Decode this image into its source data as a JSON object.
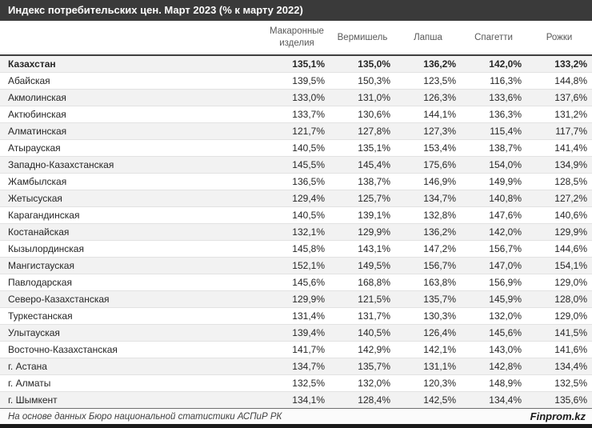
{
  "title": "Индекс потребительских цен. Март 2023 (% к марту 2022)",
  "chart_data": {
    "type": "table",
    "title": "Индекс потребительских цен. Март 2023 (% к марту 2022)",
    "columns": [
      "Макаронные изделия",
      "Вермишель",
      "Лапша",
      "Спагетти",
      "Рожки"
    ],
    "rows": [
      {
        "region": "Казахстан",
        "bold": true,
        "values": [
          "135,1%",
          "135,0%",
          "136,2%",
          "142,0%",
          "133,2%"
        ]
      },
      {
        "region": "Абайская",
        "values": [
          "139,5%",
          "150,3%",
          "123,5%",
          "116,3%",
          "144,8%"
        ]
      },
      {
        "region": "Акмолинская",
        "values": [
          "133,0%",
          "131,0%",
          "126,3%",
          "133,6%",
          "137,6%"
        ]
      },
      {
        "region": "Актюбинская",
        "values": [
          "133,7%",
          "130,6%",
          "144,1%",
          "136,3%",
          "131,2%"
        ]
      },
      {
        "region": "Алматинская",
        "values": [
          "121,7%",
          "127,8%",
          "127,3%",
          "115,4%",
          "117,7%"
        ]
      },
      {
        "region": "Атырауская",
        "values": [
          "140,5%",
          "135,1%",
          "153,4%",
          "138,7%",
          "141,4%"
        ]
      },
      {
        "region": "Западно-Казахстанская",
        "values": [
          "145,5%",
          "145,4%",
          "175,6%",
          "154,0%",
          "134,9%"
        ]
      },
      {
        "region": "Жамбылская",
        "values": [
          "136,5%",
          "138,7%",
          "146,9%",
          "149,9%",
          "128,5%"
        ]
      },
      {
        "region": "Жетысуская",
        "values": [
          "129,4%",
          "125,7%",
          "134,7%",
          "140,8%",
          "127,2%"
        ]
      },
      {
        "region": "Карагандинская",
        "values": [
          "140,5%",
          "139,1%",
          "132,8%",
          "147,6%",
          "140,6%"
        ]
      },
      {
        "region": "Костанайская",
        "values": [
          "132,1%",
          "129,9%",
          "136,2%",
          "142,0%",
          "129,9%"
        ]
      },
      {
        "region": "Кызылординская",
        "values": [
          "145,8%",
          "143,1%",
          "147,2%",
          "156,7%",
          "144,6%"
        ]
      },
      {
        "region": "Мангистауская",
        "values": [
          "152,1%",
          "149,5%",
          "156,7%",
          "147,0%",
          "154,1%"
        ]
      },
      {
        "region": "Павлодарская",
        "values": [
          "145,6%",
          "168,8%",
          "163,8%",
          "156,9%",
          "129,0%"
        ]
      },
      {
        "region": "Северо-Казахстанская",
        "values": [
          "129,9%",
          "121,5%",
          "135,7%",
          "145,9%",
          "128,0%"
        ]
      },
      {
        "region": "Туркестанская",
        "values": [
          "131,4%",
          "131,7%",
          "130,3%",
          "132,0%",
          "129,0%"
        ]
      },
      {
        "region": "Улытауская",
        "values": [
          "139,4%",
          "140,5%",
          "126,4%",
          "145,6%",
          "141,5%"
        ]
      },
      {
        "region": "Восточно-Казахстанская",
        "values": [
          "141,7%",
          "142,9%",
          "142,1%",
          "143,0%",
          "141,6%"
        ]
      },
      {
        "region": "г. Астана",
        "values": [
          "134,7%",
          "135,7%",
          "131,1%",
          "142,8%",
          "134,4%"
        ]
      },
      {
        "region": "г. Алматы",
        "values": [
          "132,5%",
          "132,0%",
          "120,3%",
          "148,9%",
          "132,5%"
        ]
      },
      {
        "region": "г. Шымкент",
        "values": [
          "134,1%",
          "128,4%",
          "142,5%",
          "134,4%",
          "135,6%"
        ]
      }
    ]
  },
  "footer": {
    "source": "На основе данных Бюро национальной статистики АСПиР РК",
    "brand": "Finprom.kz"
  },
  "colors": {
    "title_bar_bg": "#3a3a3a",
    "title_text": "#ffffff",
    "header_text": "#595959",
    "row_alt_bg": "#f2f2f2",
    "table_top_border": "#404040",
    "bottom_strip": "#1a1a1a"
  }
}
